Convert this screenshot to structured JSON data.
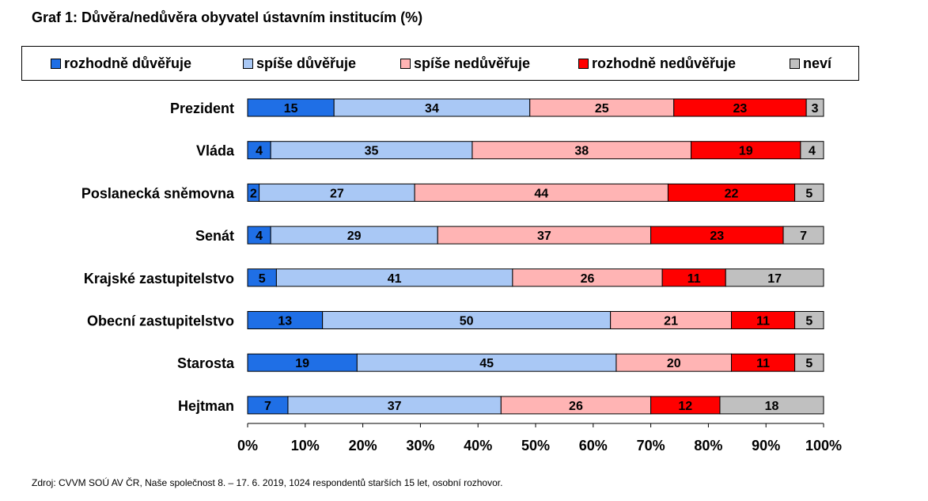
{
  "chart_data": {
    "type": "bar",
    "orientation": "horizontal",
    "stacked": true,
    "title": "Graf 1: Důvěra/nedůvěra obyvatel ústavním institucím (%)",
    "source": "Zdroj: CVVM SOÚ AV ČR, Naše společnost 8. – 17. 6. 2019, 1024 respondentů starších 15 let, osobní rozhovor.",
    "categories": [
      "Prezident",
      "Vláda",
      "Poslanecká sněmovna",
      "Senát",
      "Krajské zastupitelstvo",
      "Obecní zastupitelstvo",
      "Starosta",
      "Hejtman"
    ],
    "series": [
      {
        "name": "rozhodně důvěřuje",
        "color": "#1f6fe6",
        "values": [
          15,
          4,
          2,
          4,
          5,
          13,
          19,
          7
        ]
      },
      {
        "name": "spíše důvěřuje",
        "color": "#a9c8f5",
        "values": [
          34,
          35,
          27,
          29,
          41,
          50,
          45,
          37
        ]
      },
      {
        "name": "spíše nedůvěřuje",
        "color": "#ffb4b4",
        "values": [
          25,
          38,
          44,
          37,
          26,
          21,
          20,
          26
        ]
      },
      {
        "name": "rozhodně nedůvěřuje",
        "color": "#ff0000",
        "values": [
          23,
          19,
          22,
          23,
          11,
          11,
          11,
          12
        ]
      },
      {
        "name": "neví",
        "color": "#c0c0c0",
        "values": [
          3,
          4,
          5,
          7,
          17,
          5,
          5,
          18
        ]
      }
    ],
    "xlim": [
      0,
      100
    ],
    "x_ticks": [
      "0%",
      "10%",
      "20%",
      "30%",
      "40%",
      "50%",
      "60%",
      "70%",
      "80%",
      "90%",
      "100%"
    ],
    "legend": "top",
    "grid": false
  }
}
